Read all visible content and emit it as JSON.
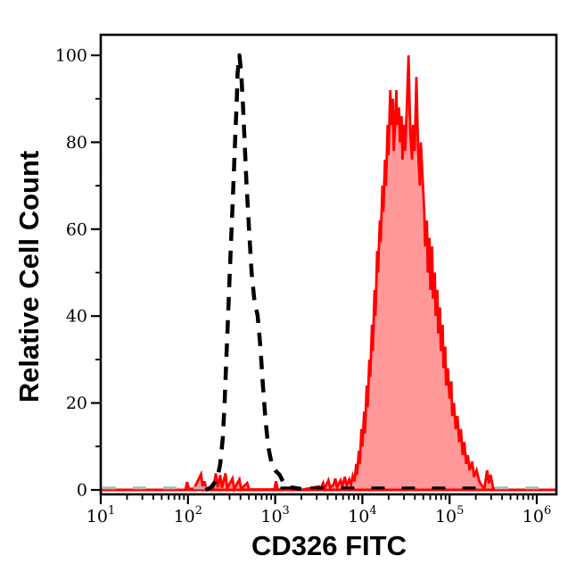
{
  "figure": {
    "background": "#ffffff",
    "frame_color": "#000000"
  },
  "chart_data": {
    "type": "area",
    "title": "",
    "xlabel": "CD326 FITC",
    "ylabel": "Relative Cell Count",
    "x_scale": "log10",
    "x_tick_base": "10",
    "x_tick_exponents": [
      1,
      2,
      3,
      4,
      5,
      6
    ],
    "xlim_log": [
      1.0,
      6.22
    ],
    "y_ticks": [
      0,
      20,
      40,
      60,
      80,
      100
    ],
    "y_minor_ticks": [
      10,
      30,
      50,
      70,
      90
    ],
    "ylim": [
      -1.2,
      104.8
    ],
    "grid": false,
    "legend": null,
    "colors": {
      "positive_stroke": "#ff0000",
      "positive_fill": "#ff9898",
      "control_stroke": "#000000",
      "baseline_gray": "#b4b4b4",
      "axis": "#000000"
    },
    "series": [
      {
        "name": "negative control (dashed)",
        "type": "line",
        "line_style": "dashed",
        "color": "#000000",
        "points": [
          [
            2.2,
            0
          ],
          [
            2.26,
            0.5
          ],
          [
            2.3,
            1.5
          ],
          [
            2.34,
            3
          ],
          [
            2.37,
            6
          ],
          [
            2.4,
            12
          ],
          [
            2.42,
            20
          ],
          [
            2.44,
            30
          ],
          [
            2.46,
            40
          ],
          [
            2.48,
            50
          ],
          [
            2.5,
            60
          ],
          [
            2.52,
            70
          ],
          [
            2.54,
            80
          ],
          [
            2.56,
            90
          ],
          [
            2.57,
            96
          ],
          [
            2.59,
            100
          ],
          [
            2.61,
            96
          ],
          [
            2.63,
            89
          ],
          [
            2.65,
            80
          ],
          [
            2.67,
            71
          ],
          [
            2.7,
            60
          ],
          [
            2.73,
            50
          ],
          [
            2.76,
            44
          ],
          [
            2.8,
            40
          ],
          [
            2.83,
            33
          ],
          [
            2.86,
            24
          ],
          [
            2.89,
            16
          ],
          [
            2.92,
            10
          ],
          [
            2.96,
            6
          ],
          [
            3.0,
            4.5
          ],
          [
            3.05,
            3.5
          ],
          [
            3.1,
            1.5
          ],
          [
            3.18,
            0.6
          ],
          [
            3.3,
            0.2
          ]
        ]
      },
      {
        "name": "CD326 FITC stained (red filled)",
        "type": "area",
        "line_style": "solid",
        "color": "#ff0000",
        "fill": "#ff9898",
        "points": [
          [
            1.0,
            0
          ],
          [
            1.97,
            0
          ],
          [
            1.99,
            1.8
          ],
          [
            2.01,
            0.2
          ],
          [
            2.07,
            0.3
          ],
          [
            2.15,
            3.6
          ],
          [
            2.17,
            0.4
          ],
          [
            2.19,
            2.0
          ],
          [
            2.21,
            0.2
          ],
          [
            2.29,
            0.3
          ],
          [
            2.32,
            3.8
          ],
          [
            2.34,
            0.6
          ],
          [
            2.37,
            3.4
          ],
          [
            2.39,
            0.5
          ],
          [
            2.43,
            3.8
          ],
          [
            2.45,
            0.4
          ],
          [
            2.51,
            2.6
          ],
          [
            2.53,
            0.2
          ],
          [
            2.59,
            2.4
          ],
          [
            2.61,
            0.2
          ],
          [
            2.68,
            1.6
          ],
          [
            2.7,
            0.1
          ],
          [
            2.99,
            0.1
          ],
          [
            3.01,
            2.0
          ],
          [
            3.03,
            0.1
          ],
          [
            3.3,
            0
          ],
          [
            3.5,
            0.8
          ],
          [
            3.52,
            0.2
          ],
          [
            3.55,
            1.6
          ],
          [
            3.57,
            0.3
          ],
          [
            3.61,
            2.2
          ],
          [
            3.63,
            0.5
          ],
          [
            3.67,
            1.2
          ],
          [
            3.69,
            2.6
          ],
          [
            3.71,
            0.6
          ],
          [
            3.75,
            2.2
          ],
          [
            3.77,
            0.8
          ],
          [
            3.8,
            3.0
          ],
          [
            3.82,
            1.0
          ],
          [
            3.85,
            2.4
          ],
          [
            3.87,
            1.2
          ],
          [
            3.89,
            3.2
          ],
          [
            3.91,
            2.0
          ],
          [
            3.93,
            6.0
          ],
          [
            3.94,
            3.5
          ],
          [
            3.96,
            9
          ],
          [
            3.97,
            6
          ],
          [
            3.99,
            14
          ],
          [
            4.0,
            10
          ],
          [
            4.02,
            18
          ],
          [
            4.03,
            13
          ],
          [
            4.05,
            24
          ],
          [
            4.06,
            19
          ],
          [
            4.08,
            30
          ],
          [
            4.09,
            26
          ],
          [
            4.11,
            38
          ],
          [
            4.12,
            32
          ],
          [
            4.14,
            46
          ],
          [
            4.15,
            40
          ],
          [
            4.17,
            55
          ],
          [
            4.18,
            50
          ],
          [
            4.2,
            62
          ],
          [
            4.21,
            57
          ],
          [
            4.23,
            70
          ],
          [
            4.24,
            64
          ],
          [
            4.26,
            76
          ],
          [
            4.27,
            70
          ],
          [
            4.29,
            84
          ],
          [
            4.3,
            77
          ],
          [
            4.32,
            92
          ],
          [
            4.33,
            84
          ],
          [
            4.35,
            90
          ],
          [
            4.36,
            78
          ],
          [
            4.38,
            86
          ],
          [
            4.39,
            92
          ],
          [
            4.4,
            84
          ],
          [
            4.42,
            88
          ],
          [
            4.43,
            80
          ],
          [
            4.45,
            86
          ],
          [
            4.46,
            76
          ],
          [
            4.48,
            84
          ],
          [
            4.49,
            78
          ],
          [
            4.51,
            88
          ],
          [
            4.53,
            100
          ],
          [
            4.54,
            90
          ],
          [
            4.55,
            82
          ],
          [
            4.57,
            76
          ],
          [
            4.58,
            84
          ],
          [
            4.6,
            78
          ],
          [
            4.62,
            95
          ],
          [
            4.63,
            86
          ],
          [
            4.64,
            78
          ],
          [
            4.66,
            70
          ],
          [
            4.67,
            80
          ],
          [
            4.69,
            72
          ],
          [
            4.71,
            64
          ],
          [
            4.72,
            56
          ],
          [
            4.74,
            62
          ],
          [
            4.75,
            50
          ],
          [
            4.77,
            58
          ],
          [
            4.78,
            46
          ],
          [
            4.8,
            56
          ],
          [
            4.81,
            44
          ],
          [
            4.83,
            50
          ],
          [
            4.84,
            40
          ],
          [
            4.86,
            46
          ],
          [
            4.87,
            36
          ],
          [
            4.89,
            42
          ],
          [
            4.9,
            32
          ],
          [
            4.92,
            38
          ],
          [
            4.93,
            28
          ],
          [
            4.95,
            33
          ],
          [
            4.96,
            24
          ],
          [
            4.98,
            28
          ],
          [
            5.0,
            21
          ],
          [
            5.02,
            25
          ],
          [
            5.03,
            17
          ],
          [
            5.05,
            20
          ],
          [
            5.07,
            14
          ],
          [
            5.09,
            17
          ],
          [
            5.11,
            11
          ],
          [
            5.13,
            14
          ],
          [
            5.15,
            8
          ],
          [
            5.17,
            11
          ],
          [
            5.19,
            6
          ],
          [
            5.21,
            8
          ],
          [
            5.23,
            4.5
          ],
          [
            5.26,
            6.5
          ],
          [
            5.28,
            3
          ],
          [
            5.31,
            4.5
          ],
          [
            5.34,
            2
          ],
          [
            5.37,
            1
          ],
          [
            5.4,
            0.4
          ],
          [
            5.43,
            4.5
          ],
          [
            5.45,
            1.5
          ],
          [
            5.47,
            3.5
          ],
          [
            5.5,
            0.4
          ],
          [
            5.55,
            0
          ],
          [
            6.22,
            0
          ]
        ]
      }
    ],
    "baseline_dashes": [
      {
        "color": "#b4b4b4",
        "from_log": 1.02,
        "to_log": 2.25
      },
      {
        "color": "#000000",
        "from_log": 3.06,
        "to_log": 5.45
      },
      {
        "color": "#b4b4b4",
        "from_log": 5.52,
        "to_log": 6.18
      }
    ],
    "baseline_solid": {
      "color": "#ff0000",
      "from_log": 1.0,
      "to_log": 6.22
    }
  }
}
